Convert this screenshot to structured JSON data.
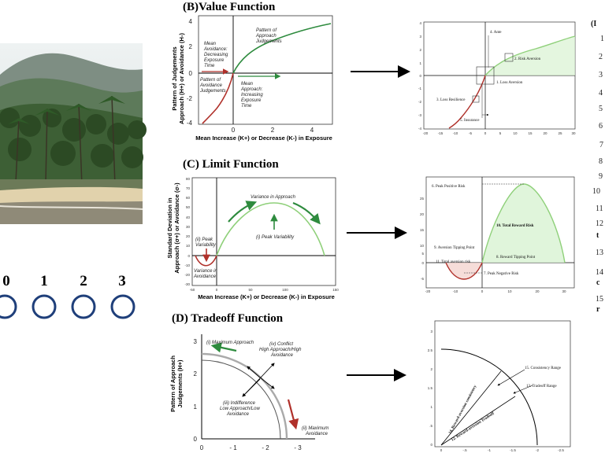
{
  "rating_scale": {
    "labels": [
      "0",
      "1",
      "2",
      "3"
    ],
    "circle_color": "#1f3f7a"
  },
  "value_function": {
    "title": "(B)Value Function",
    "ylabel_line1": "Pattern of Judgements",
    "ylabel_line2": "Approach (H+) or Avoidance (H-)",
    "xlabel": "Mean Increase (K+) or Decrease (K-) in Exposure",
    "x_ticks": [
      "0",
      "2",
      "4"
    ],
    "y_ticks": [
      "4",
      "2",
      "0",
      "-2",
      "-4"
    ],
    "note_mean_avoidance": [
      "Mean",
      "Avoidance:",
      "Decreasing",
      "Exposure",
      "Time"
    ],
    "note_pattern_approach": [
      "Pattern of",
      "Approach",
      "Judgements"
    ],
    "note_pattern_avoidance": [
      "Pattern of",
      "Avoidance",
      "Judgements"
    ],
    "note_mean_approach": [
      "Mean",
      "Approach:",
      "Increasing",
      "Exposure",
      "Time"
    ]
  },
  "value_detail": {
    "labels": {
      "ante": "4. Ante",
      "risk_aversion": "2. Risk Aversion",
      "loss_aversion": "1. Loss Aversion",
      "loss_resilience": "3. Loss Resilience",
      "insurance": "5. Insurance"
    },
    "x_ticks": [
      "-20",
      "-15",
      "-10",
      "-5",
      "0",
      "5",
      "10",
      "15",
      "20",
      "25",
      "30"
    ],
    "y_ticks": [
      "4",
      "3",
      "2",
      "1",
      "0",
      "-1",
      "-2",
      "-3",
      "-4"
    ]
  },
  "limit_function": {
    "title": "(C) Limit Function",
    "ylabel_line1": "Standard Deviation in",
    "ylabel_line2": "Approach (σ+) or Avoidance (σ-)",
    "xlabel": "Mean Increase (K+) or Decrease (K-) in Exposure",
    "x_ticks": [
      "-50",
      "0",
      "50",
      "100",
      "150"
    ],
    "y_ticks": [
      "80",
      "70",
      "60",
      "50",
      "40",
      "30",
      "20",
      "10",
      "0",
      "-10",
      "-20",
      "-30"
    ],
    "note_variance_approach": "Variance in Approach",
    "note_peak_variability": "(i) Peak Variability",
    "note_peak_variability_left": [
      "(ii) Peak",
      "Variability"
    ],
    "note_variance_avoidance": [
      "Variance in",
      "Avoidance"
    ]
  },
  "limit_detail": {
    "labels": {
      "peak_positive": "6. Peak Positive Risk",
      "total_reward": "10. Total Reward Risk",
      "aversion_tipping": "9. Aversion Tipping Point",
      "reward_tipping": "8. Reward Tipping Point",
      "total_aversion": "11. Total aversion risk",
      "peak_negative": "7. Peak Negative Risk"
    },
    "x_ticks": [
      "-20",
      "-10",
      "0",
      "10",
      "20",
      "30"
    ],
    "y_ticks": [
      "25",
      "20",
      "15",
      "10",
      "5",
      "0",
      "-5"
    ]
  },
  "tradeoff_function": {
    "title": "(D) Tradeoff Function",
    "ylabel_line1": "Pattern of  Approach",
    "ylabel_line2": "Judgements (H+)",
    "x_ticks": [
      "0",
      "- 1",
      "- 2",
      "- 3"
    ],
    "y_ticks": [
      "3",
      "2",
      "1",
      "0"
    ],
    "note_max_approach": "(i) Maximum Approach",
    "note_conflict": [
      "(iv) Conflict",
      "High Approach/High",
      "Avoidance"
    ],
    "note_indifference": [
      "(iii) Indifference",
      "Low Approach/Low",
      "Avoidance"
    ],
    "note_max_avoidance": [
      "(ii) Maximum",
      "Avoidance"
    ]
  },
  "tradeoff_detail": {
    "labels": {
      "consistency": "15. Consistency Range",
      "tradeoff_range": "13. Tradeoff Range",
      "reward_aversion_consistency": "14. Reward-aversion consistency",
      "reward_aversion_tradeoff": "12. Reward-aversion Tradeoff"
    },
    "x_ticks": [
      "0",
      "-.5",
      "-1",
      "-1.5",
      "-2",
      "-2.5"
    ],
    "y_ticks": [
      "3",
      "2.5",
      "2",
      "1.5",
      "1",
      ".5",
      "0"
    ]
  },
  "right_list": {
    "numbers": [
      "1",
      "2",
      "3",
      "4",
      "5",
      "6",
      "7",
      "8",
      "9",
      "10",
      "11",
      "12",
      "13",
      "14",
      "15"
    ],
    "fragments": [
      "(I",
      "t",
      "c",
      "r"
    ]
  },
  "colors": {
    "approach_green": "#2e8b3e",
    "light_green": "#8fd07a",
    "avoidance_red": "#b0302a",
    "fill_green": "#d8f2d2",
    "fill_red": "#f4d4d0"
  }
}
